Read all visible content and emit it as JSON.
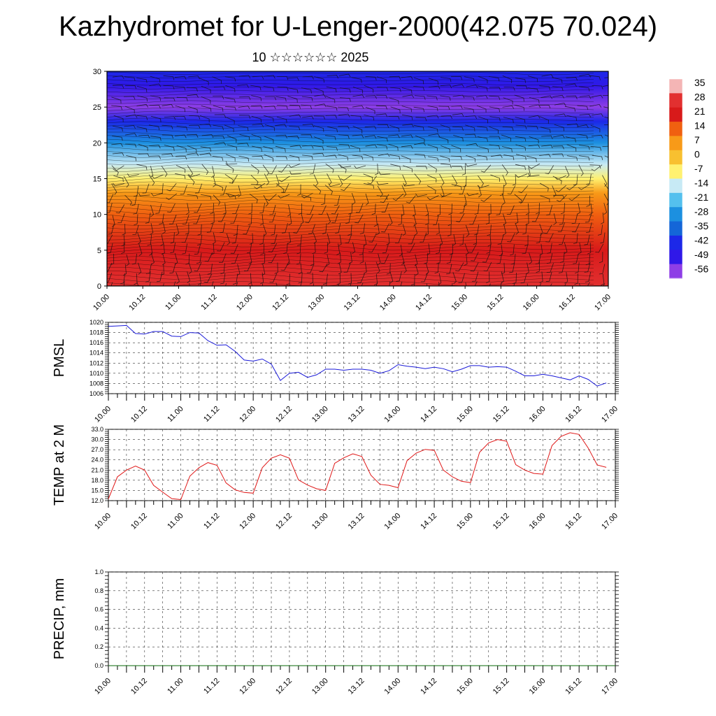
{
  "page": {
    "title": "Kazhydromet for U-Lenger-2000(42.075 70.024)",
    "subtitle": "10 ☆☆☆☆☆☆ 2025"
  },
  "time_ticks": [
    "10.00",
    "10.12",
    "11.00",
    "11.12",
    "12.00",
    "12.12",
    "13.00",
    "13.12",
    "14.00",
    "14.12",
    "15.00",
    "15.12",
    "16.00",
    "16.12",
    "17.00"
  ],
  "chart_data": [
    {
      "type": "heatmap",
      "name": "cross-section",
      "ylim": [
        0,
        30
      ],
      "yticks": [
        0,
        5,
        10,
        15,
        20,
        25,
        30
      ],
      "colorbar": {
        "labels": [
          "35",
          "28",
          "21",
          "14",
          "7",
          "0",
          "-7",
          "-14",
          "-21",
          "-28",
          "-35",
          "-42",
          "-49",
          "-56"
        ],
        "colors": [
          "#f4b5b5",
          "#e23030",
          "#d81a1a",
          "#f06010",
          "#f89a18",
          "#f8c030",
          "#fff170",
          "#c7eaf5",
          "#54c0ee",
          "#1c90e0",
          "#1466d8",
          "#1c28e8",
          "#3018e8",
          "#8e3ee6"
        ]
      },
      "temperature_profile_levels": [
        0,
        5,
        10,
        13,
        15,
        17,
        20,
        23,
        25,
        28,
        30
      ],
      "temperature_profile_values": [
        24,
        18,
        10,
        2,
        -7,
        -18,
        -30,
        -45,
        -56,
        -52,
        -48
      ]
    },
    {
      "type": "line",
      "ylabel": "PMSL",
      "ylim": [
        1006,
        1020
      ],
      "yticks": [
        "1006",
        "1008",
        "1010",
        "1012",
        "1014",
        "1016",
        "1018",
        "1020"
      ],
      "color": "#1a1ad8",
      "x": [
        0,
        3,
        6,
        9,
        12,
        15,
        18,
        21,
        24,
        27,
        30,
        33,
        36,
        39,
        42,
        45,
        48,
        51,
        54,
        57,
        60,
        63,
        66,
        69,
        72,
        75,
        78,
        81,
        84,
        87,
        90,
        93,
        96,
        99,
        102,
        105,
        108,
        111,
        114,
        117,
        120,
        123,
        126,
        129,
        132,
        135,
        138,
        141,
        144,
        147,
        150,
        153,
        156,
        159,
        162,
        165
      ],
      "values": [
        1019.2,
        1019.3,
        1019.4,
        1017.8,
        1017.7,
        1018.2,
        1018.2,
        1017.3,
        1017.2,
        1018.0,
        1017.9,
        1016.4,
        1015.5,
        1015.6,
        1014.3,
        1012.6,
        1012.4,
        1012.8,
        1011.8,
        1008.6,
        1010.0,
        1010.2,
        1009.2,
        1009.7,
        1010.8,
        1010.8,
        1010.6,
        1010.8,
        1010.8,
        1010.6,
        1010.0,
        1010.5,
        1011.7,
        1011.4,
        1011.2,
        1010.9,
        1011.2,
        1010.9,
        1010.3,
        1010.8,
        1011.5,
        1011.5,
        1011.2,
        1011.3,
        1011.2,
        1010.4,
        1009.5,
        1009.5,
        1009.8,
        1009.5,
        1009.1,
        1008.7,
        1009.5,
        1008.8,
        1007.5,
        1008.1
      ]
    },
    {
      "type": "line",
      "ylabel": "TEMP at 2 M",
      "ylim": [
        12,
        33
      ],
      "yticks": [
        "12.0",
        "15.0",
        "18.0",
        "21.0",
        "24.0",
        "27.0",
        "30.0",
        "33.0"
      ],
      "color": "#e01818",
      "x": [
        0,
        3,
        6,
        9,
        12,
        15,
        18,
        21,
        24,
        27,
        30,
        33,
        36,
        39,
        42,
        45,
        48,
        51,
        54,
        57,
        60,
        63,
        66,
        69,
        72,
        75,
        78,
        81,
        84,
        87,
        90,
        93,
        96,
        99,
        102,
        105,
        108,
        111,
        114,
        117,
        120,
        123,
        126,
        129,
        132,
        135,
        138,
        141,
        144,
        147,
        150,
        153,
        156,
        159,
        162,
        165
      ],
      "values": [
        12.5,
        19.0,
        21.0,
        22.2,
        21.0,
        16.5,
        14.5,
        12.6,
        12.3,
        19.2,
        21.7,
        23.2,
        22.4,
        17.2,
        15.2,
        14.4,
        14.2,
        21.7,
        24.5,
        25.5,
        24.5,
        18.1,
        16.6,
        15.5,
        15.0,
        23.0,
        24.6,
        25.8,
        25.0,
        19.5,
        16.8,
        16.5,
        15.8,
        23.8,
        26.0,
        27.1,
        26.8,
        21.0,
        19.0,
        17.7,
        17.3,
        26.2,
        29.0,
        30.0,
        29.5,
        22.6,
        21.0,
        20.0,
        19.8,
        28.2,
        30.9,
        32.0,
        31.5,
        27.5,
        22.5,
        21.8
      ]
    },
    {
      "type": "line",
      "ylabel": "PRECIP, mm",
      "ylim": [
        0,
        1.0
      ],
      "yticks": [
        "0.0",
        "0.2",
        "0.4",
        "0.6",
        "0.8",
        "1.0"
      ],
      "color": "#0a6a0a",
      "x": [
        0,
        168
      ],
      "values": [
        0,
        0
      ]
    }
  ]
}
